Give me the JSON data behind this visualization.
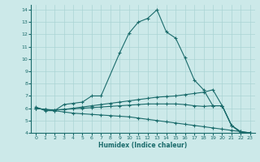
{
  "xlabel": "Humidex (Indice chaleur)",
  "bg_color": "#cce9e9",
  "line_color": "#1a6b6b",
  "grid_color": "#aad4d4",
  "xlim": [
    -0.5,
    23.5
  ],
  "ylim": [
    4,
    14.4
  ],
  "xticks": [
    0,
    1,
    2,
    3,
    4,
    5,
    6,
    7,
    8,
    9,
    10,
    11,
    12,
    13,
    14,
    15,
    16,
    17,
    18,
    19,
    20,
    21,
    22,
    23
  ],
  "yticks": [
    4,
    5,
    6,
    7,
    8,
    9,
    10,
    11,
    12,
    13,
    14
  ],
  "series": [
    {
      "x": [
        0,
        1,
        2,
        3,
        4,
        5,
        6,
        7,
        9,
        10,
        11,
        12,
        13,
        14,
        15,
        16,
        17,
        18,
        19,
        20,
        21,
        22,
        23
      ],
      "y": [
        6.1,
        5.8,
        5.8,
        6.3,
        6.4,
        6.5,
        7.0,
        7.0,
        10.5,
        12.1,
        13.0,
        13.3,
        14.0,
        12.2,
        11.7,
        10.1,
        8.3,
        7.5,
        6.2,
        6.2,
        4.6,
        4.0,
        4.0
      ]
    },
    {
      "x": [
        0,
        1,
        2,
        3,
        4,
        5,
        6,
        7,
        8,
        9,
        10,
        11,
        12,
        13,
        14,
        15,
        16,
        17,
        18,
        19,
        20,
        21,
        22,
        23
      ],
      "y": [
        6.0,
        5.9,
        5.8,
        5.7,
        5.6,
        5.55,
        5.5,
        5.45,
        5.4,
        5.35,
        5.3,
        5.2,
        5.1,
        5.0,
        4.9,
        4.8,
        4.7,
        4.6,
        4.5,
        4.4,
        4.3,
        4.2,
        4.1,
        4.0
      ]
    },
    {
      "x": [
        0,
        1,
        2,
        3,
        4,
        5,
        6,
        7,
        8,
        9,
        10,
        11,
        12,
        13,
        14,
        15,
        16,
        17,
        18,
        19,
        20,
        21,
        22,
        23
      ],
      "y": [
        6.0,
        5.9,
        5.85,
        5.9,
        5.95,
        6.0,
        6.05,
        6.1,
        6.15,
        6.2,
        6.25,
        6.3,
        6.35,
        6.35,
        6.35,
        6.35,
        6.3,
        6.2,
        6.15,
        6.2,
        6.2,
        4.6,
        4.05,
        4.0
      ]
    },
    {
      "x": [
        0,
        1,
        2,
        3,
        4,
        5,
        6,
        7,
        8,
        9,
        10,
        11,
        12,
        13,
        14,
        15,
        16,
        17,
        18,
        19,
        20,
        21,
        22,
        23
      ],
      "y": [
        6.0,
        5.9,
        5.85,
        5.9,
        6.0,
        6.1,
        6.2,
        6.3,
        6.4,
        6.5,
        6.6,
        6.7,
        6.8,
        6.9,
        6.95,
        7.0,
        7.1,
        7.2,
        7.3,
        7.5,
        6.2,
        4.6,
        4.1,
        4.0
      ]
    }
  ]
}
